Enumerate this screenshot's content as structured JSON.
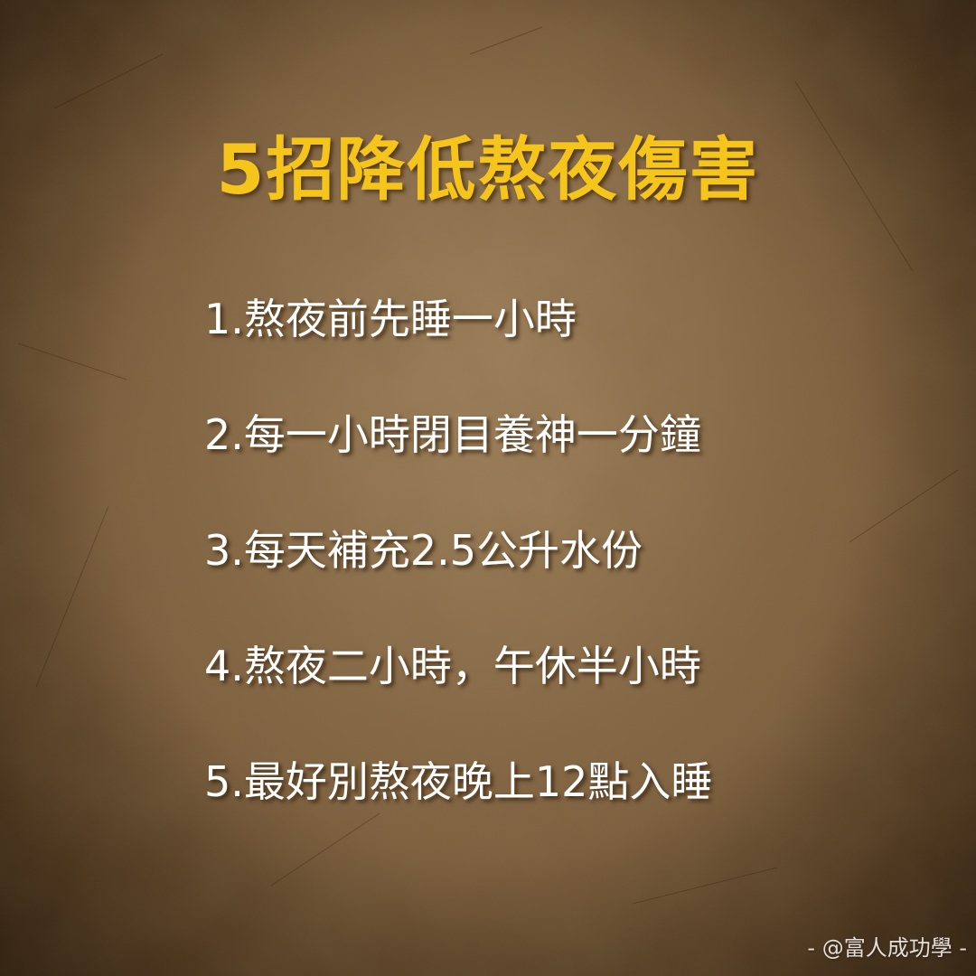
{
  "title": "5招降低熬夜傷害",
  "tips": [
    "1.熬夜前先睡一小時",
    "2.每一小時閉目養神一分鐘",
    "3.每天補充2.5公升水份",
    "4.熬夜二小時，午休半小時",
    "5.最好別熬夜晚上12點入睡"
  ],
  "credit": "- @富人成功學 -",
  "colors": {
    "title": "#f5c51c",
    "text": "#ffffff",
    "background": "#7a5b3b"
  }
}
